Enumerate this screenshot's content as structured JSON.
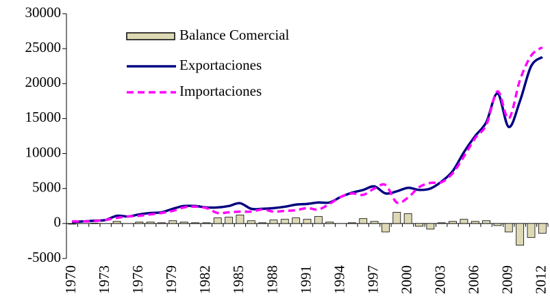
{
  "chart_data": {
    "type": "bar",
    "categories": [
      "1970",
      null,
      null,
      "1973",
      null,
      null,
      "1976",
      null,
      null,
      "1979",
      null,
      null,
      "1982",
      null,
      null,
      "1985",
      null,
      null,
      "1988",
      null,
      null,
      "1991",
      null,
      null,
      "1994",
      null,
      null,
      "1997",
      null,
      null,
      "2000",
      null,
      null,
      "2003",
      null,
      null,
      "2006",
      null,
      null,
      "2009",
      null,
      null,
      "2012"
    ],
    "series": [
      {
        "name": "Balance Comercial",
        "type": "bar",
        "color": "#ddd9b5",
        "values": [
          -100,
          0,
          50,
          0,
          300,
          0,
          200,
          200,
          100,
          400,
          200,
          100,
          100,
          800,
          900,
          1200,
          400,
          100,
          500,
          600,
          800,
          600,
          1000,
          200,
          0,
          100,
          700,
          300,
          -1200,
          1600,
          1400,
          -400,
          -800,
          100,
          300,
          600,
          300,
          400,
          -300,
          -1200,
          -3100,
          -2000,
          -1400
        ]
      },
      {
        "name": "Exportaciones",
        "type": "line",
        "line_style": "solid",
        "color": "#000080",
        "values": [
          200,
          300,
          400,
          500,
          1100,
          1000,
          1300,
          1500,
          1600,
          2100,
          2500,
          2500,
          2300,
          2300,
          2500,
          2900,
          2100,
          2100,
          2200,
          2400,
          2700,
          2800,
          3000,
          3000,
          3800,
          4400,
          4800,
          5300,
          4300,
          4600,
          5100,
          4800,
          5000,
          6000,
          7500,
          10200,
          12500,
          14500,
          18600,
          13800,
          17500,
          22500,
          23800
        ]
      },
      {
        "name": "Importaciones",
        "type": "line",
        "line_style": "dashed",
        "color": "#ff00ff",
        "values": [
          300,
          300,
          350,
          500,
          800,
          1000,
          1100,
          1300,
          1500,
          1800,
          2300,
          2400,
          2200,
          1500,
          1600,
          1700,
          1700,
          2000,
          1700,
          1800,
          1900,
          2200,
          2000,
          2800,
          3800,
          4300,
          4100,
          5000,
          5500,
          3000,
          3700,
          5200,
          5800,
          5900,
          7200,
          9600,
          12200,
          14100,
          18900,
          15000,
          20500,
          24000,
          25200
        ]
      }
    ],
    "ylim": [
      -5000,
      30000
    ],
    "yticks": [
      -5000,
      0,
      5000,
      10000,
      15000,
      20000,
      25000,
      30000
    ],
    "grid": false,
    "legend": "top-left"
  }
}
